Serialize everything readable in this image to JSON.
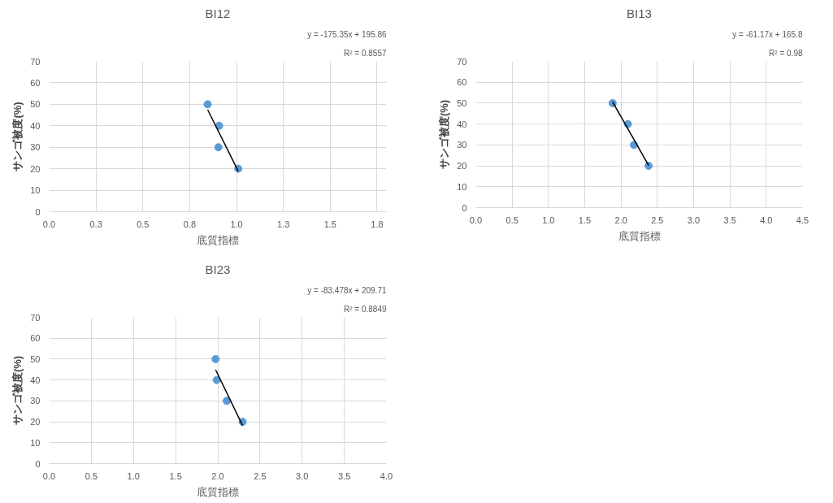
{
  "chart_data": [
    {
      "type": "scatter",
      "title": "BI12",
      "xlabel": "底質指標",
      "ylabel": "サンゴ被度(%)",
      "annotations": [
        "y = -175.35x + 195.86",
        "R² = 0.8557"
      ],
      "marker": "circle",
      "grid": true,
      "xlim": [
        0,
        1.8
      ],
      "xticks": [
        {
          "value": 0,
          "label": "0.0"
        },
        {
          "value": 0.25,
          "label": "0.3"
        },
        {
          "value": 0.5,
          "label": "0.5"
        },
        {
          "value": 0.75,
          "label": "0.8"
        },
        {
          "value": 1.0,
          "label": "1.0"
        },
        {
          "value": 1.25,
          "label": "1.3"
        },
        {
          "value": 1.5,
          "label": "1.5"
        },
        {
          "value": 1.75,
          "label": "1.8"
        }
      ],
      "ylim": [
        0,
        70
      ],
      "yticks": [
        0,
        10,
        20,
        30,
        40,
        50,
        60,
        70
      ],
      "series": [
        {
          "color": "#5b9bd5",
          "x": [
            0.846,
            0.907,
            0.903,
            1.009
          ],
          "values": [
            50,
            40,
            30,
            20
          ]
        },
        {
          "type": "line",
          "color": "#000000",
          "marker": "none",
          "x": [
            0.846,
            1.009
          ],
          "values": [
            47.5,
            18.9
          ]
        }
      ]
    },
    {
      "type": "scatter",
      "title": "BI13",
      "xlabel": "底質指標",
      "ylabel": "サンゴ被度(%)",
      "annotations": [
        "y = -61.17x + 165.8",
        "R² = 0.98"
      ],
      "marker": "circle",
      "grid": true,
      "xlim": [
        0,
        4.5
      ],
      "xticks": [
        {
          "value": 0,
          "label": "0.0"
        },
        {
          "value": 0.5,
          "label": "0.5"
        },
        {
          "value": 1,
          "label": "1.0"
        },
        {
          "value": 1.5,
          "label": "1.5"
        },
        {
          "value": 2,
          "label": "2.0"
        },
        {
          "value": 2.5,
          "label": "2.5"
        },
        {
          "value": 3,
          "label": "3.0"
        },
        {
          "value": 3.5,
          "label": "3.5"
        },
        {
          "value": 4,
          "label": "4.0"
        },
        {
          "value": 4.5,
          "label": "4.5"
        }
      ],
      "ylim": [
        0,
        70
      ],
      "yticks": [
        0,
        10,
        20,
        30,
        40,
        50,
        60,
        70
      ],
      "series": [
        {
          "color": "#5b9bd5",
          "x": [
            1.884,
            2.094,
            2.178,
            2.38
          ],
          "values": [
            50,
            40,
            30,
            20
          ]
        },
        {
          "type": "line",
          "color": "#000000",
          "marker": "none",
          "x": [
            1.884,
            2.38
          ],
          "values": [
            50.6,
            20.2
          ]
        }
      ]
    },
    {
      "type": "scatter",
      "title": "BI23",
      "xlabel": "底質指標",
      "ylabel": "サンゴ被度(%)",
      "annotations": [
        "y = -83.478x + 209.71",
        "R² = 0.8849"
      ],
      "marker": "circle",
      "grid": true,
      "xlim": [
        0,
        4
      ],
      "xticks": [
        {
          "value": 0,
          "label": "0.0"
        },
        {
          "value": 0.5,
          "label": "0.5"
        },
        {
          "value": 1,
          "label": "1.0"
        },
        {
          "value": 1.5,
          "label": "1.5"
        },
        {
          "value": 2,
          "label": "2.0"
        },
        {
          "value": 2.5,
          "label": "2.5"
        },
        {
          "value": 3,
          "label": "3.0"
        },
        {
          "value": 3.5,
          "label": "3.5"
        },
        {
          "value": 4,
          "label": "4.0"
        }
      ],
      "ylim": [
        0,
        70
      ],
      "yticks": [
        0,
        10,
        20,
        30,
        40,
        50,
        60,
        70
      ],
      "series": [
        {
          "color": "#5b9bd5",
          "x": [
            1.974,
            1.987,
            2.106,
            2.294
          ],
          "values": [
            50,
            40,
            30,
            20
          ]
        },
        {
          "type": "line",
          "color": "#000000",
          "marker": "none",
          "x": [
            1.974,
            2.294
          ],
          "values": [
            44.9,
            18.2
          ]
        }
      ]
    }
  ]
}
